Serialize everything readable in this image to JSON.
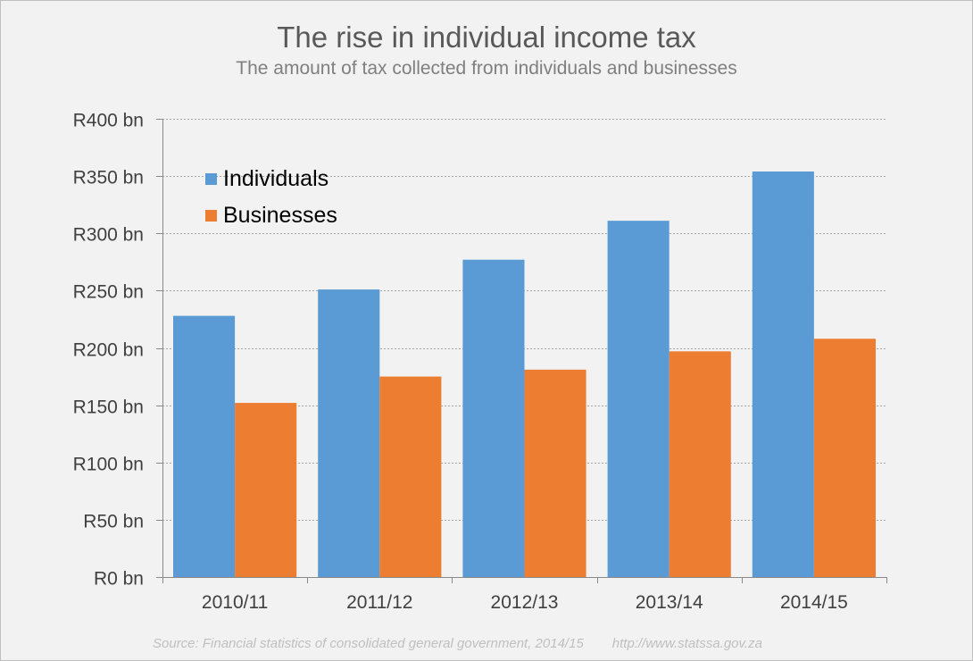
{
  "chart_data": {
    "type": "bar",
    "title": "The rise in individual income tax",
    "subtitle": "The amount of tax collected from individuals and businesses",
    "categories": [
      "2010/11",
      "2011/12",
      "2012/13",
      "2013/14",
      "2014/15"
    ],
    "series": [
      {
        "name": "Individuals",
        "color": "#5b9bd5",
        "values": [
          228,
          251,
          277,
          311,
          354
        ]
      },
      {
        "name": "Businesses",
        "color": "#ed7d31",
        "values": [
          152,
          175,
          181,
          197,
          208
        ]
      }
    ],
    "yticks": [
      "R0 bn",
      "R50 bn",
      "R100 bn",
      "R150 bn",
      "R200 bn",
      "R250 bn",
      "R300 bn",
      "R350 bn",
      "R400 bn"
    ],
    "ylim": [
      0,
      400
    ],
    "ystep": 50,
    "grid": true,
    "legend_position": "top-left"
  },
  "footer": {
    "source": "Source: Financial statistics of consolidated general government, 2014/15",
    "url": "http://www.statssa.gov.za"
  }
}
